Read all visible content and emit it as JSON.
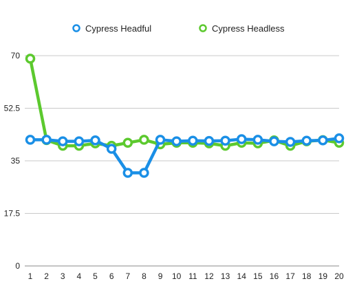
{
  "chart_data": {
    "type": "line",
    "x": [
      1,
      2,
      3,
      4,
      5,
      6,
      7,
      8,
      9,
      10,
      11,
      12,
      13,
      14,
      15,
      16,
      17,
      18,
      19,
      20
    ],
    "y_ticks": [
      "0",
      "17.5",
      "35",
      "52.5",
      "70"
    ],
    "y_tick_values": [
      0,
      17.5,
      35,
      52.5,
      70
    ],
    "ylim": [
      0,
      70
    ],
    "grid": "horizontal",
    "legend_position": "top-center",
    "title": "",
    "xlabel": "",
    "ylabel": "",
    "series": [
      {
        "name": "Cypress Headful",
        "color": "#1a8fe6",
        "values": [
          42,
          42,
          41.5,
          41.5,
          41.8,
          39,
          31,
          31,
          42,
          41.5,
          41.7,
          41.6,
          41.7,
          42.2,
          42,
          41.5,
          41.3,
          41.7,
          41.8,
          42.5
        ]
      },
      {
        "name": "Cypress Headless",
        "color": "#5cc92e",
        "values": [
          69,
          41.9,
          40,
          40,
          40.8,
          40,
          41,
          42,
          40.5,
          41,
          41,
          40.8,
          40,
          41,
          40.8,
          41.8,
          40,
          41.5,
          41.9,
          41
        ]
      }
    ]
  }
}
